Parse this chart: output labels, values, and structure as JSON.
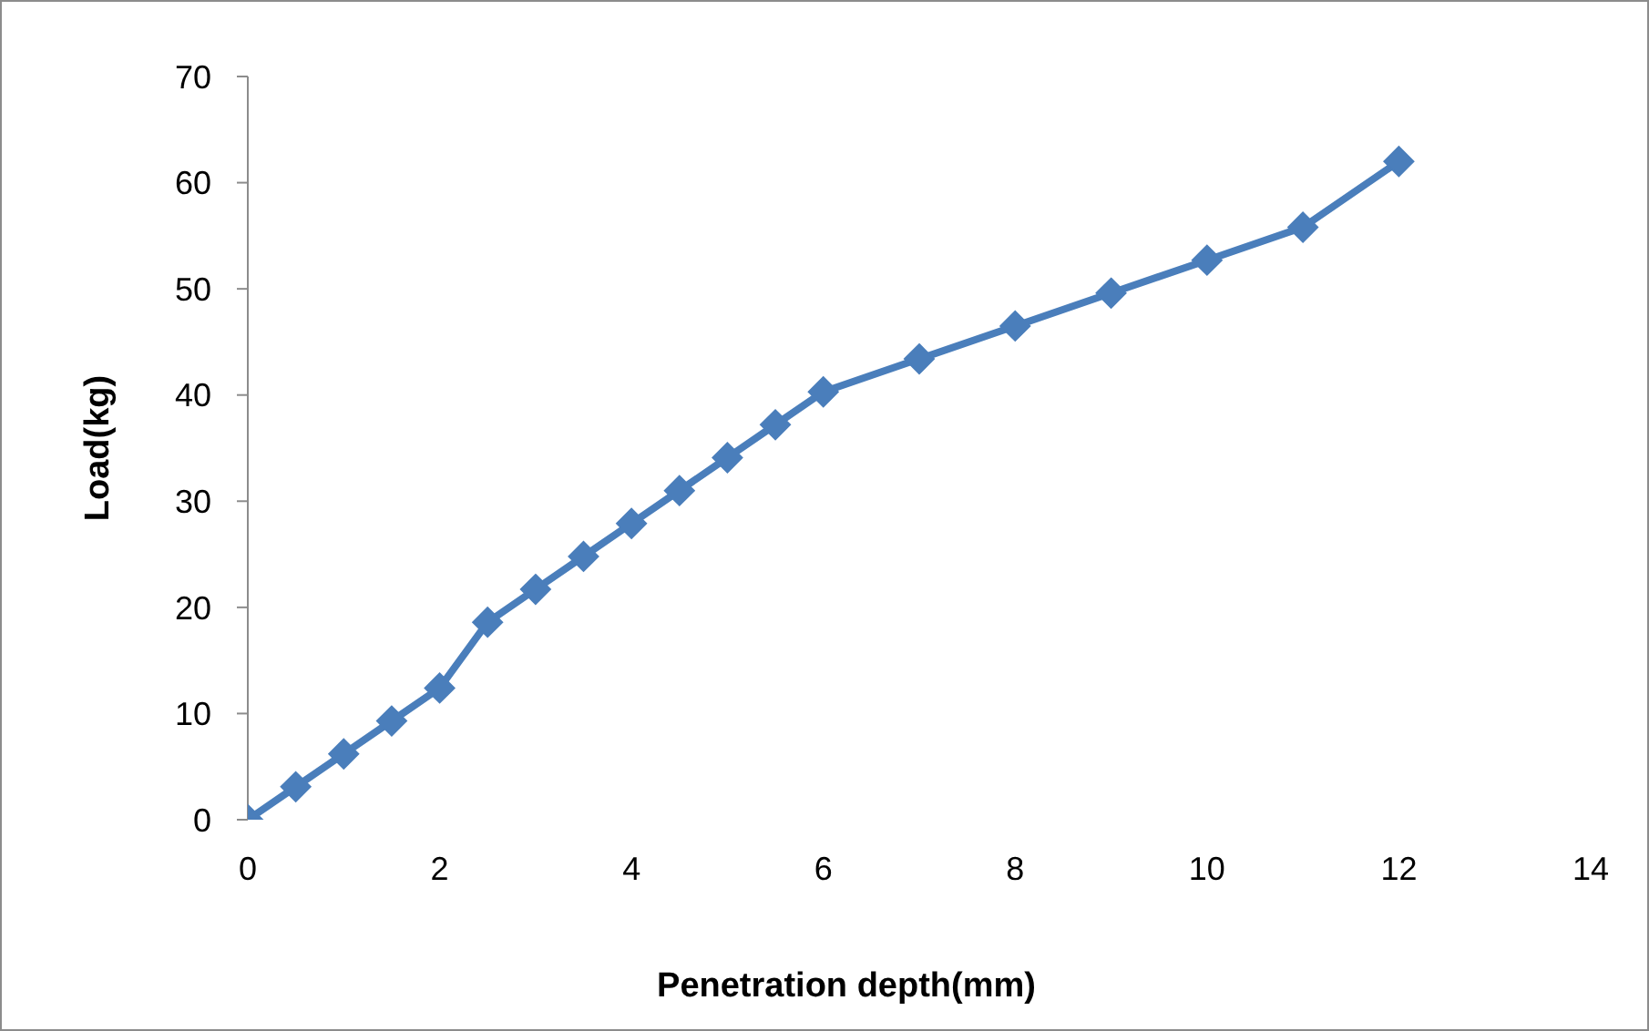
{
  "chart_data": {
    "type": "line",
    "xlabel": "Penetration  depth(mm)",
    "ylabel": "Load(kg)",
    "x": [
      0,
      0.5,
      1,
      1.5,
      2,
      2.5,
      3,
      3.5,
      4,
      4.5,
      5,
      5.5,
      6,
      7,
      8,
      9,
      10,
      11,
      12
    ],
    "series": [
      {
        "color": "#4a7ebb",
        "values": [
          0,
          3.1,
          6.2,
          9.3,
          12.4,
          18.6,
          21.7,
          24.8,
          27.9,
          31,
          34.1,
          37.2,
          40.3,
          43.4,
          46.5,
          49.6,
          52.7,
          55.8,
          62
        ]
      }
    ],
    "xlim": [
      0,
      14
    ],
    "xticks": [
      0,
      2,
      4,
      6,
      8,
      10,
      12,
      14
    ],
    "ylim": [
      0,
      70
    ],
    "yticks": [
      0,
      10,
      20,
      30,
      40,
      50,
      60,
      70
    ],
    "grid": false,
    "legend": false,
    "marker": "diamond",
    "line_style": "solid"
  }
}
